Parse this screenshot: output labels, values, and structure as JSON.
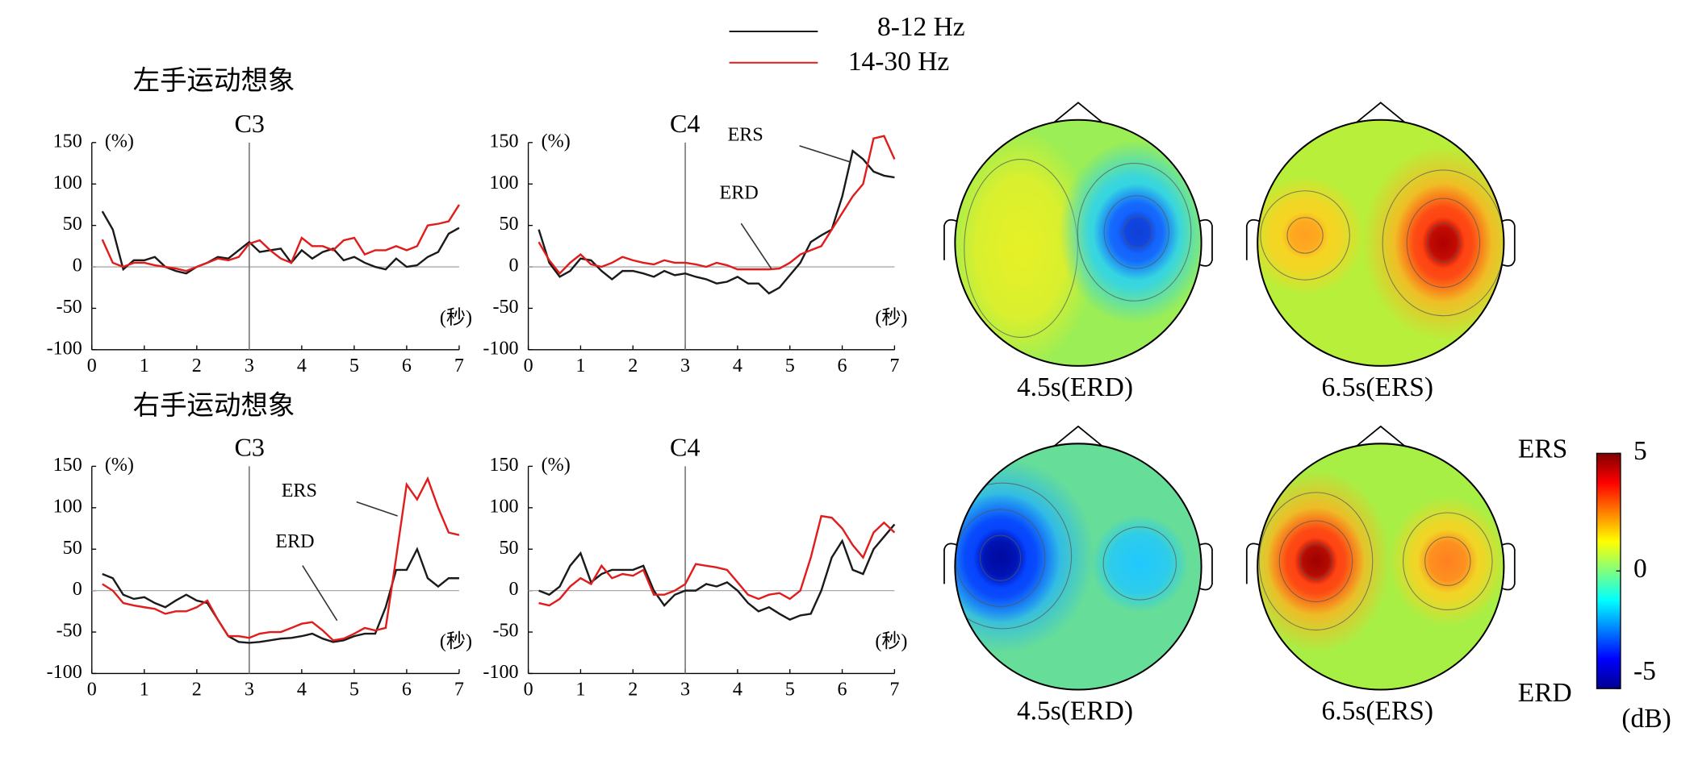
{
  "legend_title": null,
  "row_titles": [
    "左手运动想象",
    "右手运动想象"
  ],
  "chart_data": [
    {
      "type": "line",
      "title": "C3",
      "y_label": "(%)",
      "x_label": "(秒)",
      "xlim": [
        0,
        7
      ],
      "ylim": [
        -100,
        150
      ],
      "xticks": [
        0,
        1,
        2,
        3,
        4,
        5,
        6,
        7
      ],
      "yticks": [
        -100,
        -50,
        0,
        50,
        100,
        150
      ],
      "vline": 3,
      "x": [
        0.2,
        0.4,
        0.6,
        0.8,
        1.0,
        1.2,
        1.4,
        1.6,
        1.8,
        2.0,
        2.2,
        2.4,
        2.6,
        2.8,
        3.0,
        3.2,
        3.4,
        3.6,
        3.8,
        4.0,
        4.2,
        4.4,
        4.6,
        4.8,
        5.0,
        5.2,
        5.4,
        5.6,
        5.8,
        6.0,
        6.2,
        6.4,
        6.6,
        6.8,
        7.0
      ],
      "series": [
        {
          "name": "8-12 Hz",
          "color": "#1a1a1a",
          "values": [
            67,
            45,
            -3,
            8,
            8,
            12,
            0,
            -5,
            -8,
            0,
            5,
            12,
            10,
            20,
            30,
            18,
            20,
            22,
            5,
            20,
            10,
            18,
            22,
            8,
            12,
            5,
            0,
            -3,
            10,
            0,
            2,
            12,
            18,
            40,
            47
          ]
        },
        {
          "name": "14-30 Hz",
          "color": "#e01c1c",
          "values": [
            33,
            5,
            0,
            5,
            5,
            2,
            0,
            -2,
            -5,
            0,
            5,
            10,
            8,
            12,
            28,
            32,
            20,
            10,
            5,
            35,
            25,
            25,
            20,
            32,
            35,
            15,
            20,
            20,
            25,
            20,
            25,
            50,
            52,
            55,
            75
          ]
        }
      ]
    },
    {
      "type": "line",
      "title": "C4",
      "y_label": "(%)",
      "x_label": "(秒)",
      "xlim": [
        0,
        7
      ],
      "ylim": [
        -100,
        150
      ],
      "xticks": [
        0,
        1,
        2,
        3,
        4,
        5,
        6,
        7
      ],
      "yticks": [
        -100,
        -50,
        0,
        50,
        100,
        150
      ],
      "vline": 3,
      "annotations": [
        "ERS",
        "ERD"
      ],
      "x": [
        0.2,
        0.4,
        0.6,
        0.8,
        1.0,
        1.2,
        1.4,
        1.6,
        1.8,
        2.0,
        2.2,
        2.4,
        2.6,
        2.8,
        3.0,
        3.2,
        3.4,
        3.6,
        3.8,
        4.0,
        4.2,
        4.4,
        4.6,
        4.8,
        5.0,
        5.2,
        5.4,
        5.6,
        5.8,
        6.0,
        6.2,
        6.4,
        6.6,
        6.8,
        7.0
      ],
      "series": [
        {
          "name": "8-12 Hz",
          "color": "#1a1a1a",
          "values": [
            45,
            5,
            -12,
            -5,
            10,
            8,
            -5,
            -15,
            -5,
            -5,
            -8,
            -12,
            -5,
            -10,
            -8,
            -12,
            -15,
            -20,
            -18,
            -12,
            -20,
            -20,
            -32,
            -25,
            -10,
            5,
            30,
            38,
            45,
            85,
            140,
            130,
            115,
            110,
            108
          ]
        },
        {
          "name": "14-30 Hz",
          "color": "#e01c1c",
          "values": [
            30,
            8,
            -8,
            5,
            15,
            3,
            0,
            5,
            12,
            8,
            5,
            3,
            8,
            5,
            5,
            3,
            0,
            5,
            2,
            -3,
            -3,
            -3,
            -3,
            -2,
            5,
            15,
            20,
            25,
            45,
            65,
            85,
            100,
            155,
            158,
            130
          ]
        }
      ]
    },
    {
      "type": "line",
      "title": "C3",
      "y_label": "(%)",
      "x_label": "(秒)",
      "xlim": [
        0,
        7
      ],
      "ylim": [
        -100,
        150
      ],
      "xticks": [
        0,
        1,
        2,
        3,
        4,
        5,
        6,
        7
      ],
      "yticks": [
        -100,
        -50,
        0,
        50,
        100,
        150
      ],
      "vline": 3,
      "annotations": [
        "ERS",
        "ERD"
      ],
      "x": [
        0.2,
        0.4,
        0.6,
        0.8,
        1.0,
        1.2,
        1.4,
        1.6,
        1.8,
        2.0,
        2.2,
        2.4,
        2.6,
        2.8,
        3.0,
        3.2,
        3.4,
        3.6,
        3.8,
        4.0,
        4.2,
        4.4,
        4.6,
        4.8,
        5.0,
        5.2,
        5.4,
        5.6,
        5.8,
        6.0,
        6.2,
        6.4,
        6.6,
        6.8,
        7.0
      ],
      "series": [
        {
          "name": "8-12 Hz",
          "color": "#1a1a1a",
          "values": [
            20,
            15,
            -5,
            -10,
            -8,
            -15,
            -20,
            -12,
            -5,
            -12,
            -15,
            -35,
            -55,
            -62,
            -63,
            -62,
            -60,
            -58,
            -57,
            -55,
            -52,
            -58,
            -62,
            -60,
            -55,
            -52,
            -52,
            -20,
            25,
            25,
            50,
            15,
            5,
            15,
            15
          ]
        },
        {
          "name": "14-30 Hz",
          "color": "#e01c1c",
          "values": [
            8,
            0,
            -15,
            -18,
            -20,
            -22,
            -28,
            -25,
            -25,
            -20,
            -12,
            -35,
            -55,
            -55,
            -57,
            -52,
            -50,
            -50,
            -45,
            -40,
            -38,
            -48,
            -60,
            -58,
            -52,
            -45,
            -48,
            -45,
            40,
            128,
            110,
            135,
            100,
            70,
            67
          ]
        }
      ]
    },
    {
      "type": "line",
      "title": "C4",
      "y_label": "(%)",
      "x_label": "(秒)",
      "xlim": [
        0,
        7
      ],
      "ylim": [
        -100,
        150
      ],
      "xticks": [
        0,
        1,
        2,
        3,
        4,
        5,
        6,
        7
      ],
      "yticks": [
        -100,
        -50,
        0,
        50,
        100,
        150
      ],
      "vline": 3,
      "x": [
        0.2,
        0.4,
        0.6,
        0.8,
        1.0,
        1.2,
        1.4,
        1.6,
        1.8,
        2.0,
        2.2,
        2.4,
        2.6,
        2.8,
        3.0,
        3.2,
        3.4,
        3.6,
        3.8,
        4.0,
        4.2,
        4.4,
        4.6,
        4.8,
        5.0,
        5.2,
        5.4,
        5.6,
        5.8,
        6.0,
        6.2,
        6.4,
        6.6,
        6.8,
        7.0
      ],
      "series": [
        {
          "name": "8-12 Hz",
          "color": "#1a1a1a",
          "values": [
            0,
            -5,
            5,
            30,
            45,
            10,
            20,
            25,
            25,
            25,
            30,
            0,
            -18,
            -5,
            0,
            0,
            8,
            5,
            10,
            0,
            -15,
            -25,
            -20,
            -28,
            -35,
            -30,
            -28,
            0,
            40,
            60,
            25,
            20,
            50,
            65,
            80
          ]
        },
        {
          "name": "14-30 Hz",
          "color": "#e01c1c",
          "values": [
            -15,
            -18,
            -10,
            5,
            15,
            8,
            30,
            15,
            20,
            18,
            25,
            -5,
            -5,
            0,
            8,
            32,
            30,
            28,
            25,
            10,
            -5,
            -10,
            -5,
            -3,
            -10,
            0,
            40,
            90,
            88,
            75,
            55,
            40,
            70,
            82,
            70
          ]
        }
      ]
    }
  ],
  "topomaps": [
    {
      "label": "4.5s(ERD)"
    },
    {
      "label": "6.5s(ERS)"
    },
    {
      "label": "4.5s(ERD)"
    },
    {
      "label": "6.5s(ERS)"
    }
  ],
  "colorbar": {
    "clim": [
      -5,
      5
    ],
    "ticks": [
      5,
      0,
      -5
    ],
    "label": "(dB)",
    "top_label": "ERS",
    "bottom_label": "ERD"
  }
}
